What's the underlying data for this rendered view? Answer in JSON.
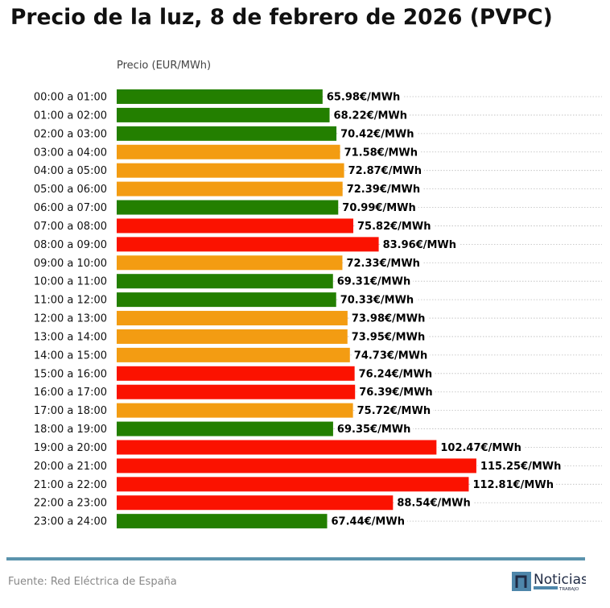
{
  "chart_data": {
    "type": "bar",
    "orientation": "horizontal",
    "title": "Precio de la luz, 8 de febrero de 2026 (PVPC)",
    "xlabel": "Precio (EUR/MWh)",
    "ylabel": "",
    "xlim": [
      0,
      155.5
    ],
    "grid": "horizontal dotted",
    "value_suffix": "€/MWh",
    "categories": [
      "00:00 a 01:00",
      "01:00 a 02:00",
      "02:00 a 03:00",
      "03:00 a 04:00",
      "04:00 a 05:00",
      "05:00 a 06:00",
      "06:00 a 07:00",
      "07:00 a 08:00",
      "08:00 a 09:00",
      "09:00 a 10:00",
      "10:00 a 11:00",
      "11:00 a 12:00",
      "12:00 a 13:00",
      "13:00 a 14:00",
      "14:00 a 15:00",
      "15:00 a 16:00",
      "16:00 a 17:00",
      "17:00 a 18:00",
      "18:00 a 19:00",
      "19:00 a 20:00",
      "20:00 a 21:00",
      "21:00 a 22:00",
      "22:00 a 23:00",
      "23:00 a 24:00"
    ],
    "values": [
      65.98,
      68.22,
      70.42,
      71.58,
      72.87,
      72.39,
      70.99,
      75.82,
      83.96,
      72.33,
      69.31,
      70.33,
      73.98,
      73.95,
      74.73,
      76.24,
      76.39,
      75.72,
      69.35,
      102.47,
      115.25,
      112.81,
      88.54,
      67.44
    ],
    "levels": [
      "low",
      "low",
      "low",
      "mid",
      "mid",
      "mid",
      "low",
      "high",
      "high",
      "mid",
      "low",
      "low",
      "mid",
      "mid",
      "mid",
      "high",
      "high",
      "mid",
      "low",
      "high",
      "high",
      "high",
      "high",
      "low"
    ],
    "colors": {
      "low": "#237f00",
      "mid": "#f39c12",
      "high": "#fb1200"
    }
  },
  "footer": {
    "source": "Fuente: Red Eléctrica de España",
    "logo_text": "Noticias",
    "logo_subtext": "TRABAJO"
  }
}
